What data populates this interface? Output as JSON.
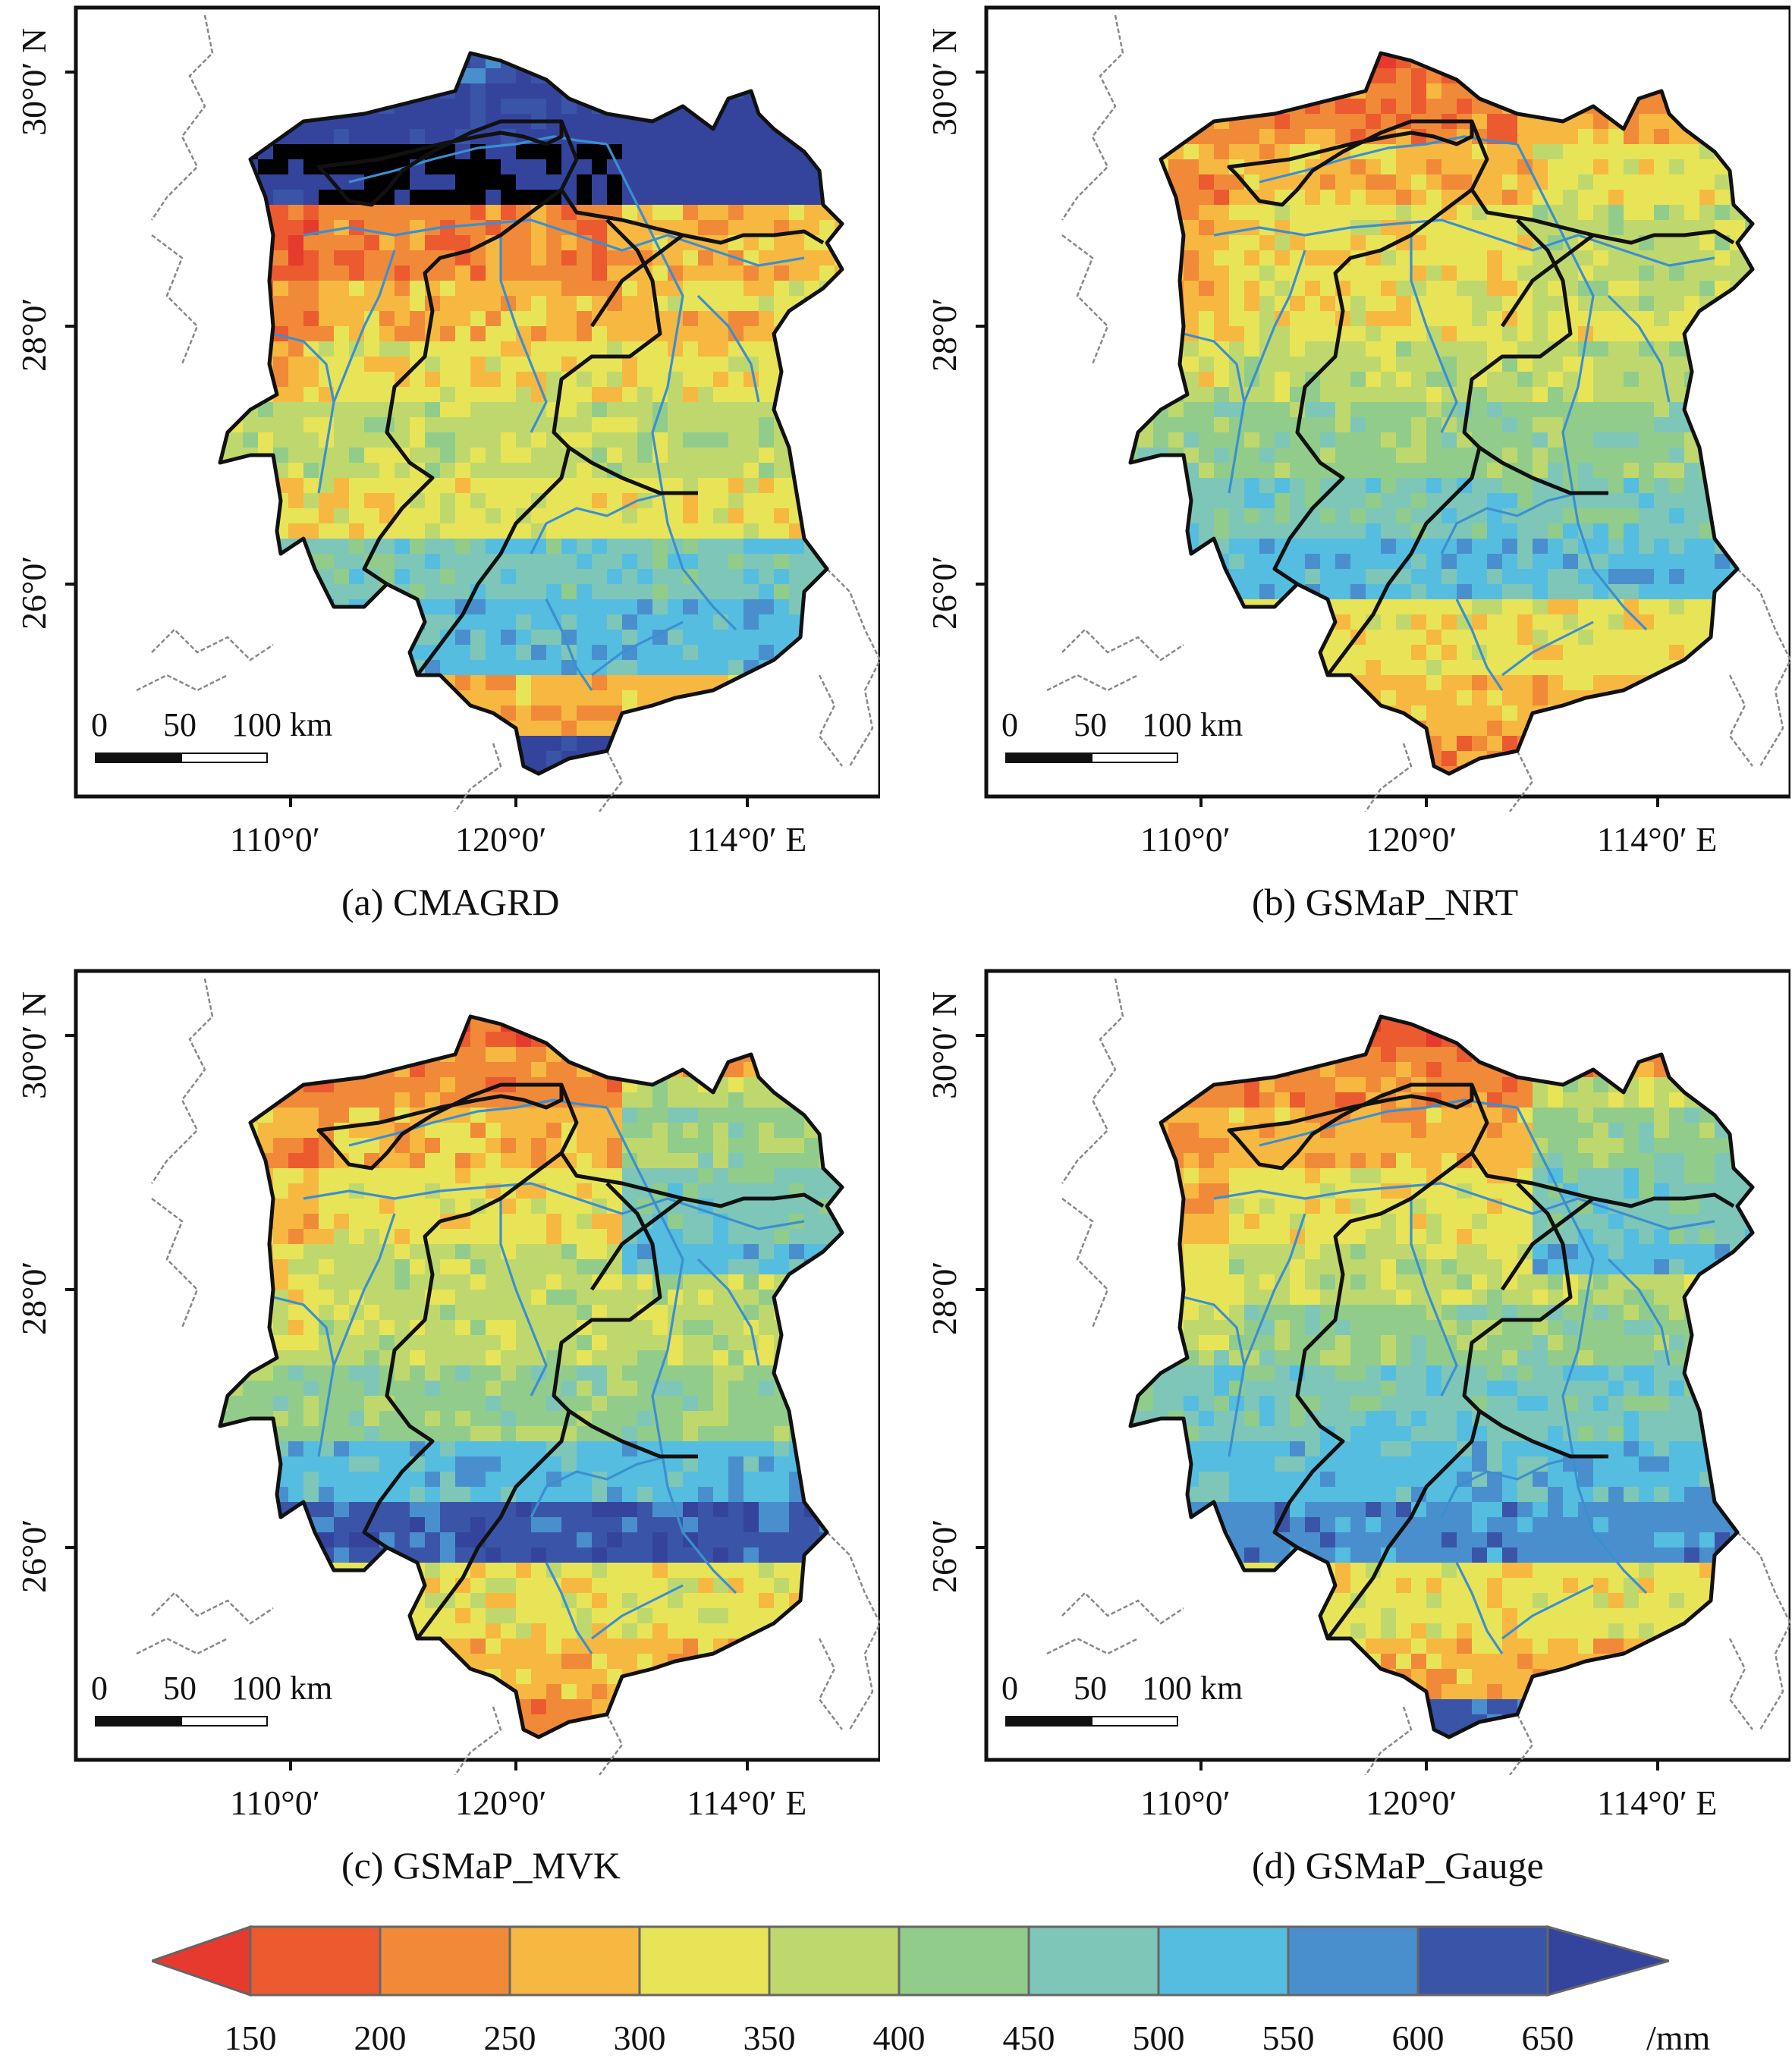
{
  "panels": [
    {
      "id": "a",
      "caption": "(a) CMAGRD",
      "palette": [
        10,
        11,
        12,
        2,
        3,
        4,
        5,
        4,
        7,
        8,
        3,
        11
      ]
    },
    {
      "id": "b",
      "caption": "(b) GSMaP_NRT",
      "palette": [
        1,
        2,
        3,
        4,
        4,
        5,
        6,
        7,
        8,
        4,
        3,
        2
      ]
    },
    {
      "id": "c",
      "caption": "(c) GSMaP_MVK",
      "palette": [
        1,
        2,
        3,
        4,
        5,
        5,
        6,
        8,
        10,
        4,
        3,
        2
      ]
    },
    {
      "id": "d",
      "caption": "(d) GSMaP_Gauge",
      "palette": [
        1,
        2,
        3,
        4,
        5,
        6,
        7,
        8,
        9,
        4,
        3,
        10
      ]
    }
  ],
  "axes": {
    "lat_labels": [
      "30°0′ N",
      "28°0′",
      "26°0′"
    ],
    "lon_labels": [
      "110°0′",
      "120°0′",
      "114°0′ E"
    ]
  },
  "scale_bar": {
    "labels": [
      "0",
      "50",
      "100 km"
    ]
  },
  "legend": {
    "colors": [
      "#e63a2e",
      "#ec5a30",
      "#f08a38",
      "#f6b840",
      "#e8e458",
      "#bfd86e",
      "#92cc8a",
      "#7ec6b8",
      "#55bde0",
      "#4a8fcd",
      "#3a55a8",
      "#34449c"
    ],
    "ticks": [
      "150",
      "200",
      "250",
      "300",
      "350",
      "400",
      "450",
      "500",
      "550",
      "600",
      "650"
    ],
    "unit": "/mm"
  }
}
